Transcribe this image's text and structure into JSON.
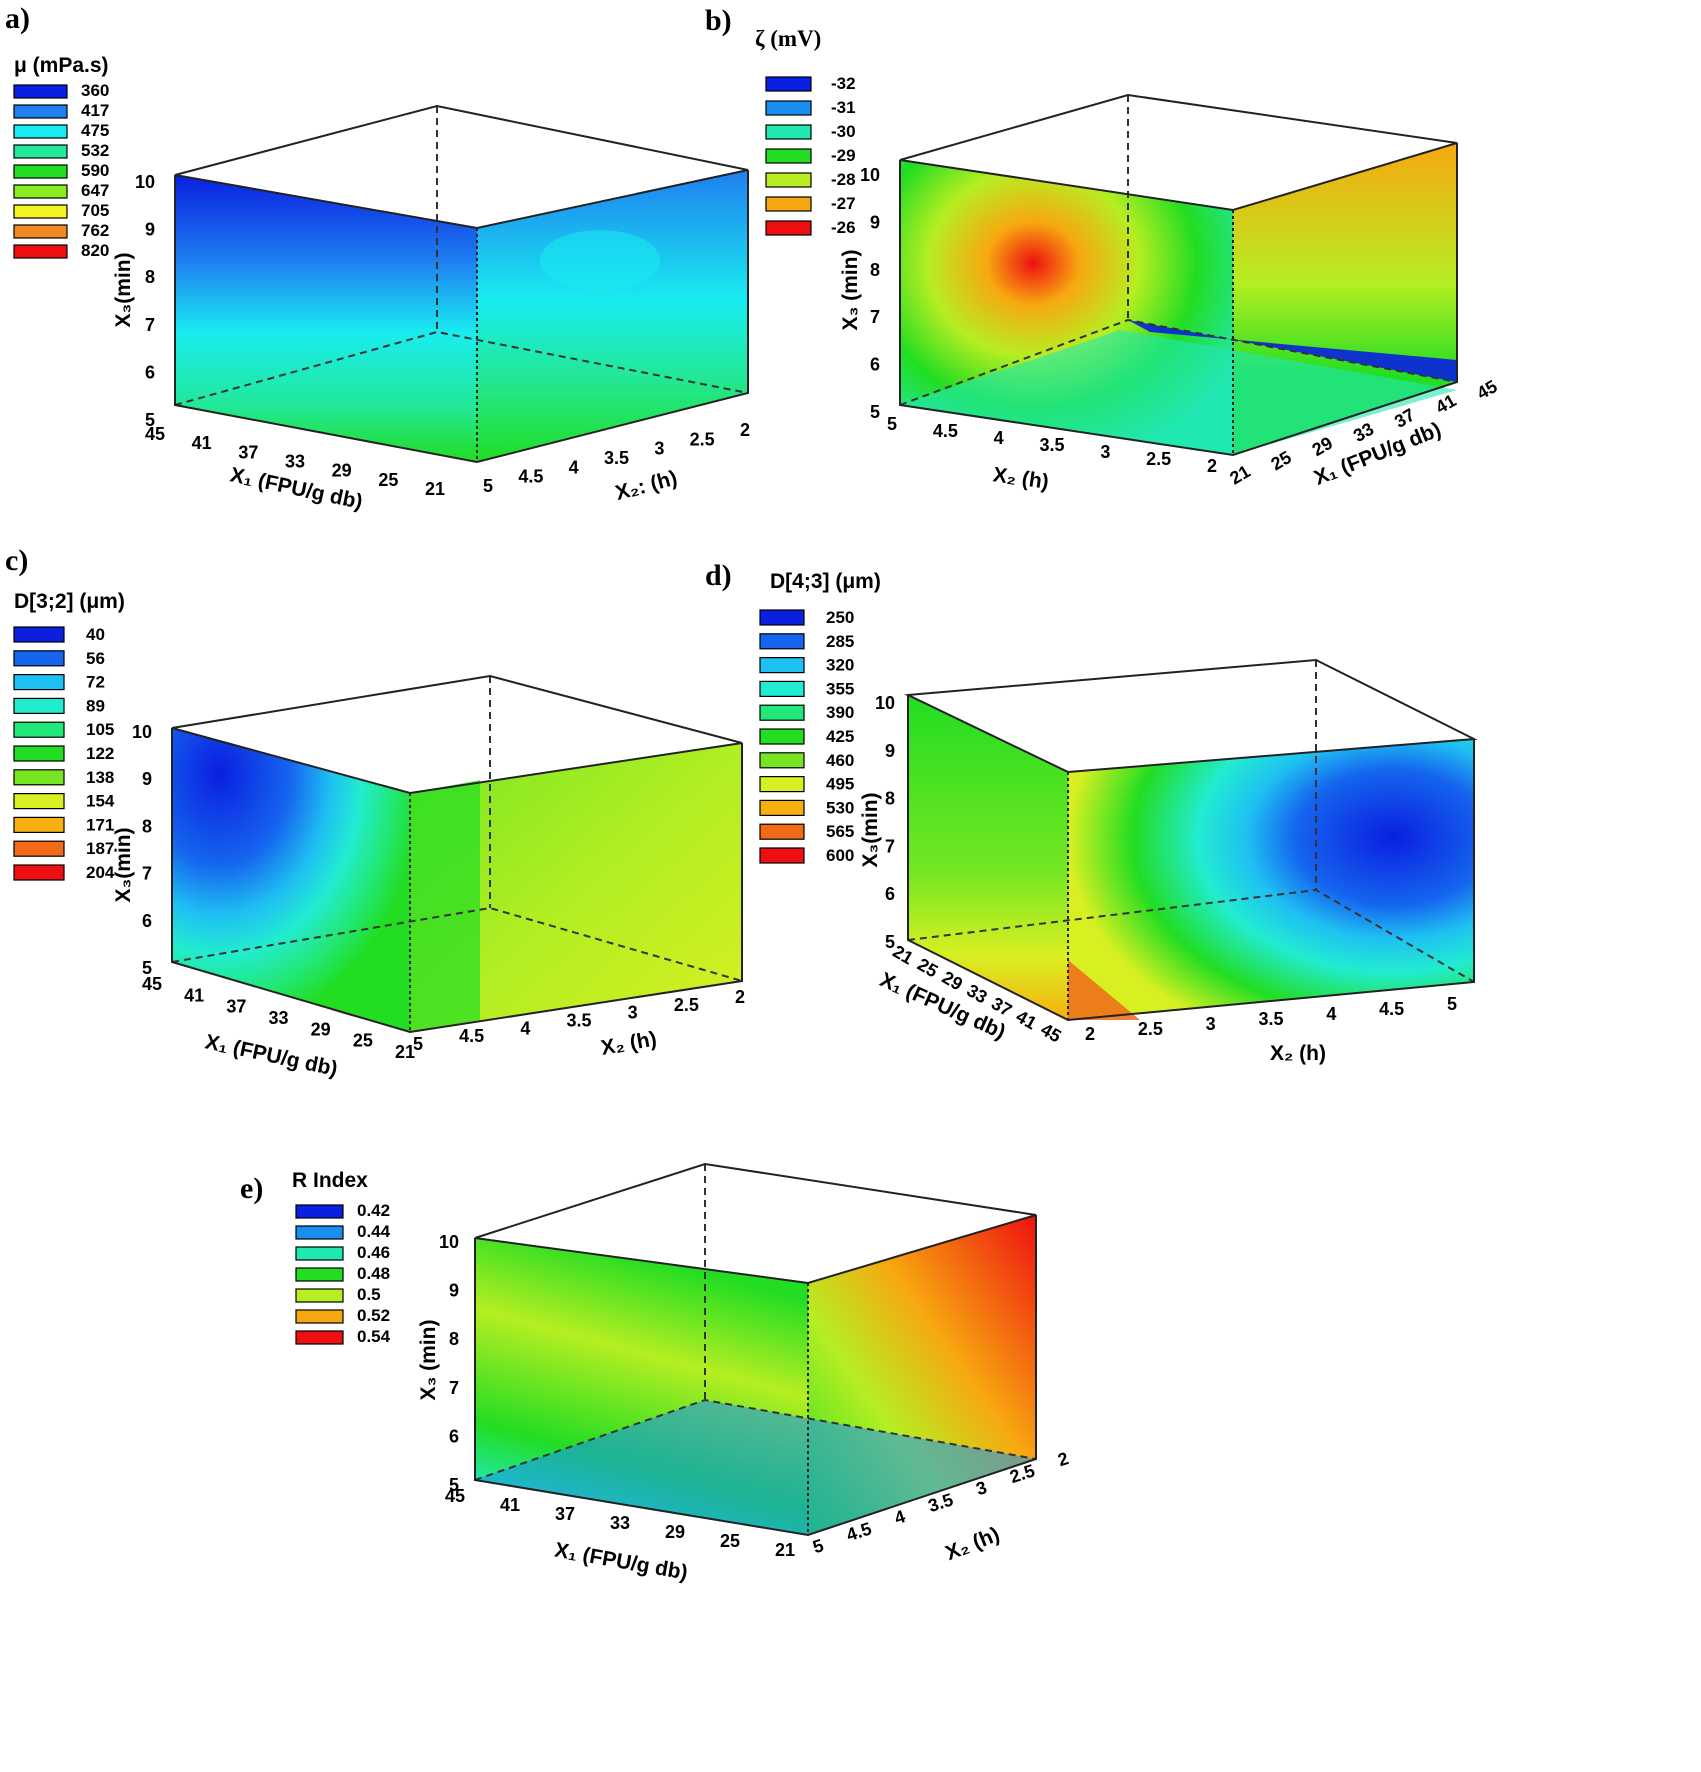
{
  "chart_data": [
    {
      "type": "heatmap",
      "panel_label": "a)",
      "legend": {
        "title": "μ (mPa.s)",
        "levels": [
          "360",
          "417",
          "475",
          "532",
          "590",
          "647",
          "705",
          "762",
          "820"
        ]
      },
      "axes": {
        "x1": {
          "label": "X₁ (FPU/g db)",
          "ticks": [
            "45",
            "41",
            "37",
            "33",
            "29",
            "25",
            "21"
          ]
        },
        "x2": {
          "label": "X₂: (h)",
          "ticks": [
            "5",
            "4.5",
            "4",
            "3.5",
            "3",
            "2.5",
            "2"
          ]
        },
        "x3": {
          "label": "X₃(min)",
          "ticks": [
            "5",
            "6",
            "7",
            "8",
            "9",
            "10"
          ]
        }
      }
    },
    {
      "type": "heatmap",
      "panel_label": "b)",
      "legend": {
        "title": "ζ (mV)",
        "levels": [
          "-32",
          "-31",
          "-30",
          "-29",
          "-28",
          "-27",
          "-26"
        ]
      },
      "axes": {
        "x2": {
          "label": "X₂ (h)",
          "ticks": [
            "5",
            "4.5",
            "4",
            "3.5",
            "3",
            "2.5",
            "2"
          ]
        },
        "x1": {
          "label": "X₁ (FPU/g db)",
          "ticks": [
            "21",
            "25",
            "29",
            "33",
            "37",
            "41",
            "45"
          ]
        },
        "x3": {
          "label": "X₃ (min)",
          "ticks": [
            "5",
            "6",
            "7",
            "8",
            "9",
            "10"
          ]
        }
      }
    },
    {
      "type": "heatmap",
      "panel_label": "c)",
      "legend": {
        "title": "D[3;2] (μm)",
        "levels": [
          "40",
          "56",
          "72",
          "89",
          "105",
          "122",
          "138",
          "154",
          "171",
          "187",
          "204"
        ]
      },
      "axes": {
        "x1": {
          "label": "X₁ (FPU/g db)",
          "ticks": [
            "45",
            "41",
            "37",
            "33",
            "29",
            "25",
            "21"
          ]
        },
        "x2": {
          "label": "X₂ (h)",
          "ticks": [
            "5",
            "4.5",
            "4",
            "3.5",
            "3",
            "2.5",
            "2"
          ]
        },
        "x3": {
          "label": "X₃(min)",
          "ticks": [
            "5",
            "6",
            "7",
            "8",
            "9",
            "10"
          ]
        }
      }
    },
    {
      "type": "heatmap",
      "panel_label": "d)",
      "legend": {
        "title": "D[4;3] (μm)",
        "levels": [
          "250",
          "285",
          "320",
          "355",
          "390",
          "425",
          "460",
          "495",
          "530",
          "565",
          "600"
        ]
      },
      "axes": {
        "x1": {
          "label": "X₁ (FPU/g db)",
          "ticks": [
            "21",
            "25",
            "29",
            "33",
            "37",
            "41",
            "45"
          ]
        },
        "x2": {
          "label": "X₂ (h)",
          "ticks": [
            "2",
            "2.5",
            "3",
            "3.5",
            "4",
            "4.5",
            "5"
          ]
        },
        "x3": {
          "label": "X₃(min)",
          "ticks": [
            "5",
            "6",
            "7",
            "8",
            "9",
            "10"
          ]
        }
      }
    },
    {
      "type": "heatmap",
      "panel_label": "e)",
      "legend": {
        "title": "R Index",
        "levels": [
          "0.42",
          "0.44",
          "0.46",
          "0.48",
          "0.5",
          "0.52",
          "0.54"
        ]
      },
      "axes": {
        "x1": {
          "label": "X₁ (FPU/g db)",
          "ticks": [
            "45",
            "41",
            "37",
            "33",
            "29",
            "25",
            "21"
          ]
        },
        "x2": {
          "label": "X₂ (h)",
          "ticks": [
            "5",
            "4.5",
            "4",
            "3.5",
            "3",
            "2.5",
            "2"
          ]
        },
        "x3": {
          "label": "X₃ (min)",
          "ticks": [
            "5",
            "6",
            "7",
            "8",
            "9",
            "10"
          ]
        }
      }
    }
  ],
  "colors": {
    "palette_7": [
      "#0a1fe0",
      "#1a8ff0",
      "#22e8b0",
      "#22dd22",
      "#b6ee22",
      "#f7a810",
      "#ee1010"
    ],
    "palette_9": [
      "#0a1fe0",
      "#1f7ff0",
      "#19ecf0",
      "#22e89a",
      "#22dd22",
      "#88ee22",
      "#f4f422",
      "#f08a20",
      "#ee1010"
    ],
    "palette_11": [
      "#0a1fe0",
      "#1565ee",
      "#1fc0f2",
      "#22ecd0",
      "#22e87a",
      "#22dd22",
      "#77e622",
      "#d8f022",
      "#f7b010",
      "#f06a18",
      "#ee1010"
    ]
  }
}
